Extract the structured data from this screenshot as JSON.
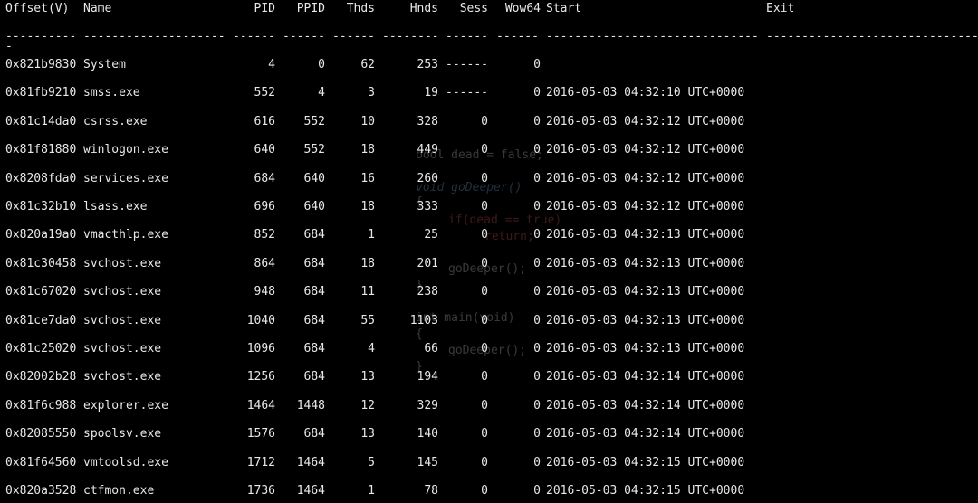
{
  "headers": {
    "offset": "Offset(V)",
    "name": "Name",
    "pid": "PID",
    "ppid": "PPID",
    "thds": "Thds",
    "hnds": "Hnds",
    "sess": "Sess",
    "wow64": "Wow64",
    "start": "Start",
    "exit": "Exit"
  },
  "separators": {
    "offset": "----------",
    "name": "--------------------",
    "pid": "------",
    "ppid": "------",
    "thds": "------",
    "hnds": "--------",
    "sess": "------",
    "wow64": "------",
    "start": "------------------------------",
    "exit": "------------------------------",
    "trailing": "-"
  },
  "rows": [
    {
      "offset": "0x821b9830",
      "name": "System",
      "pid": "4",
      "ppid": "0",
      "thds": "62",
      "hnds": "253",
      "sess": "------",
      "wow64": "0",
      "start": "",
      "exit": ""
    },
    {
      "offset": "0x81fb9210",
      "name": "smss.exe",
      "pid": "552",
      "ppid": "4",
      "thds": "3",
      "hnds": "19",
      "sess": "------",
      "wow64": "0",
      "start": "2016-05-03 04:32:10 UTC+0000",
      "exit": ""
    },
    {
      "offset": "0x81c14da0",
      "name": "csrss.exe",
      "pid": "616",
      "ppid": "552",
      "thds": "10",
      "hnds": "328",
      "sess": "0",
      "wow64": "0",
      "start": "2016-05-03 04:32:12 UTC+0000",
      "exit": ""
    },
    {
      "offset": "0x81f81880",
      "name": "winlogon.exe",
      "pid": "640",
      "ppid": "552",
      "thds": "18",
      "hnds": "449",
      "sess": "0",
      "wow64": "0",
      "start": "2016-05-03 04:32:12 UTC+0000",
      "exit": ""
    },
    {
      "offset": "0x8208fda0",
      "name": "services.exe",
      "pid": "684",
      "ppid": "640",
      "thds": "16",
      "hnds": "260",
      "sess": "0",
      "wow64": "0",
      "start": "2016-05-03 04:32:12 UTC+0000",
      "exit": ""
    },
    {
      "offset": "0x81c32b10",
      "name": "lsass.exe",
      "pid": "696",
      "ppid": "640",
      "thds": "18",
      "hnds": "333",
      "sess": "0",
      "wow64": "0",
      "start": "2016-05-03 04:32:12 UTC+0000",
      "exit": ""
    },
    {
      "offset": "0x820a19a0",
      "name": "vmacthlp.exe",
      "pid": "852",
      "ppid": "684",
      "thds": "1",
      "hnds": "25",
      "sess": "0",
      "wow64": "0",
      "start": "2016-05-03 04:32:13 UTC+0000",
      "exit": ""
    },
    {
      "offset": "0x81c30458",
      "name": "svchost.exe",
      "pid": "864",
      "ppid": "684",
      "thds": "18",
      "hnds": "201",
      "sess": "0",
      "wow64": "0",
      "start": "2016-05-03 04:32:13 UTC+0000",
      "exit": ""
    },
    {
      "offset": "0x81c67020",
      "name": "svchost.exe",
      "pid": "948",
      "ppid": "684",
      "thds": "11",
      "hnds": "238",
      "sess": "0",
      "wow64": "0",
      "start": "2016-05-03 04:32:13 UTC+0000",
      "exit": ""
    },
    {
      "offset": "0x81ce7da0",
      "name": "svchost.exe",
      "pid": "1040",
      "ppid": "684",
      "thds": "55",
      "hnds": "1103",
      "sess": "0",
      "wow64": "0",
      "start": "2016-05-03 04:32:13 UTC+0000",
      "exit": ""
    },
    {
      "offset": "0x81c25020",
      "name": "svchost.exe",
      "pid": "1096",
      "ppid": "684",
      "thds": "4",
      "hnds": "66",
      "sess": "0",
      "wow64": "0",
      "start": "2016-05-03 04:32:13 UTC+0000",
      "exit": ""
    },
    {
      "offset": "0x82002b28",
      "name": "svchost.exe",
      "pid": "1256",
      "ppid": "684",
      "thds": "13",
      "hnds": "194",
      "sess": "0",
      "wow64": "0",
      "start": "2016-05-03 04:32:14 UTC+0000",
      "exit": ""
    },
    {
      "offset": "0x81f6c988",
      "name": "explorer.exe",
      "pid": "1464",
      "ppid": "1448",
      "thds": "12",
      "hnds": "329",
      "sess": "0",
      "wow64": "0",
      "start": "2016-05-03 04:32:14 UTC+0000",
      "exit": ""
    },
    {
      "offset": "0x82085550",
      "name": "spoolsv.exe",
      "pid": "1576",
      "ppid": "684",
      "thds": "13",
      "hnds": "140",
      "sess": "0",
      "wow64": "0",
      "start": "2016-05-03 04:32:14 UTC+0000",
      "exit": ""
    },
    {
      "offset": "0x81f64560",
      "name": "vmtoolsd.exe",
      "pid": "1712",
      "ppid": "1464",
      "thds": "5",
      "hnds": "145",
      "sess": "0",
      "wow64": "0",
      "start": "2016-05-03 04:32:15 UTC+0000",
      "exit": ""
    },
    {
      "offset": "0x820a3528",
      "name": "ctfmon.exe",
      "pid": "1736",
      "ppid": "1464",
      "thds": "1",
      "hnds": "78",
      "sess": "0",
      "wow64": "0",
      "start": "2016-05-03 04:32:15 UTC+0000",
      "exit": ""
    }
  ],
  "watermark": [
    {
      "text": "bool dead = false;"
    },
    {
      "text": "void goDeeper()"
    },
    {
      "text": "{"
    },
    {
      "text": "if(dead == true)"
    },
    {
      "text": "return;"
    },
    {
      "text": "goDeeper();"
    },
    {
      "text": "}"
    },
    {
      "text": "int main(void)"
    },
    {
      "text": "{"
    },
    {
      "text": "goDeeper();"
    },
    {
      "text": "}"
    }
  ],
  "colors": {
    "background": "#000000",
    "text": "#e8e8e8",
    "watermark_keyword": "#7aa6da",
    "watermark_literal": "#e05a5a",
    "watermark_text": "#cccccc"
  }
}
